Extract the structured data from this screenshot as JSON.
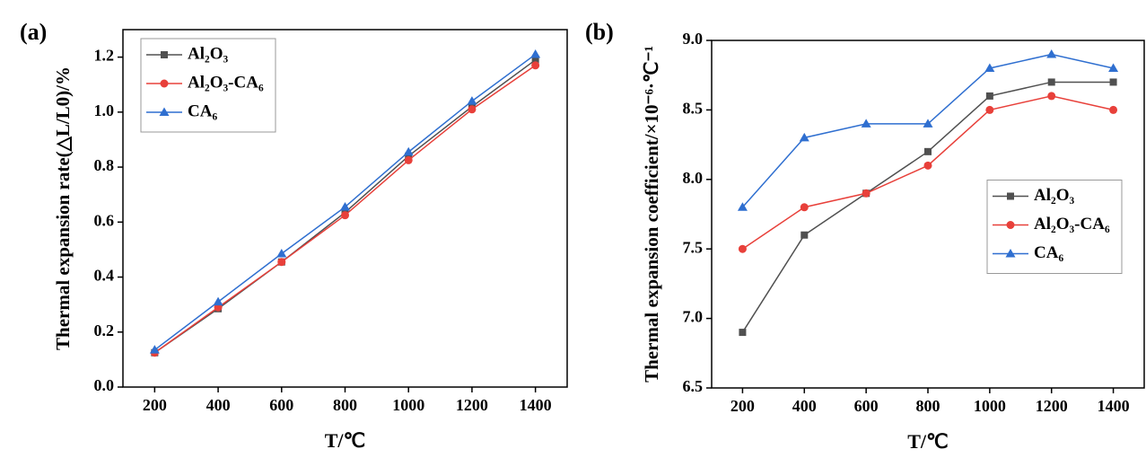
{
  "chart_data": [
    {
      "type": "line",
      "panel": "(a)",
      "xlabel": "T/℃",
      "ylabel": "Thermal expansion rate(△L/L0)/%",
      "x": [
        200,
        400,
        600,
        800,
        1000,
        1200,
        1400
      ],
      "xlim": [
        100,
        1500
      ],
      "xticks": [
        200,
        400,
        600,
        800,
        1000,
        1200,
        1400
      ],
      "ylim": [
        0,
        1.3
      ],
      "yticks": [
        {
          "value": 0,
          "label": "0.0"
        },
        0.2,
        0.4,
        0.6,
        0.8,
        {
          "value": 1,
          "label": "1.0"
        },
        1.2
      ],
      "legend": "upper left",
      "series": [
        {
          "name": "Al₂O₃",
          "color": "#505050",
          "marker": "square",
          "values": [
            0.125,
            0.285,
            0.455,
            0.635,
            0.84,
            1.02,
            1.19
          ]
        },
        {
          "name": "Al₂O₃-CA₆",
          "color": "#e8403a",
          "marker": "circle",
          "values": [
            0.125,
            0.29,
            0.455,
            0.625,
            0.825,
            1.01,
            1.17
          ]
        },
        {
          "name": "CA₆",
          "color": "#2f6fd0",
          "marker": "triangle",
          "values": [
            0.135,
            0.31,
            0.485,
            0.655,
            0.855,
            1.04,
            1.21
          ]
        }
      ]
    },
    {
      "type": "line",
      "panel": "(b)",
      "xlabel": "T/℃",
      "ylabel": "Thermal expansion coefficient/×10⁻⁶·℃⁻¹",
      "x": [
        200,
        400,
        600,
        800,
        1000,
        1200,
        1400
      ],
      "xlim": [
        100,
        1500
      ],
      "xticks": [
        200,
        400,
        600,
        800,
        1000,
        1200,
        1400
      ],
      "ylim": [
        6.5,
        9
      ],
      "yticks": [
        6.5,
        {
          "value": 7,
          "label": "7.0"
        },
        7.5,
        {
          "value": 8,
          "label": "8.0"
        },
        8.5,
        {
          "value": 9,
          "label": "9.0"
        }
      ],
      "legend": "center right",
      "series": [
        {
          "name": "Al₂O₃",
          "color": "#505050",
          "marker": "square",
          "values": [
            6.9,
            7.6,
            7.9,
            8.2,
            8.6,
            8.7,
            8.7
          ]
        },
        {
          "name": "Al₂O₃-CA₆",
          "color": "#e8403a",
          "marker": "circle",
          "values": [
            7.5,
            7.8,
            7.9,
            8.1,
            8.5,
            8.6,
            8.5
          ]
        },
        {
          "name": "CA₆",
          "color": "#2f6fd0",
          "marker": "triangle",
          "values": [
            7.8,
            8.3,
            8.4,
            8.4,
            8.8,
            8.9,
            8.8
          ]
        }
      ]
    }
  ]
}
